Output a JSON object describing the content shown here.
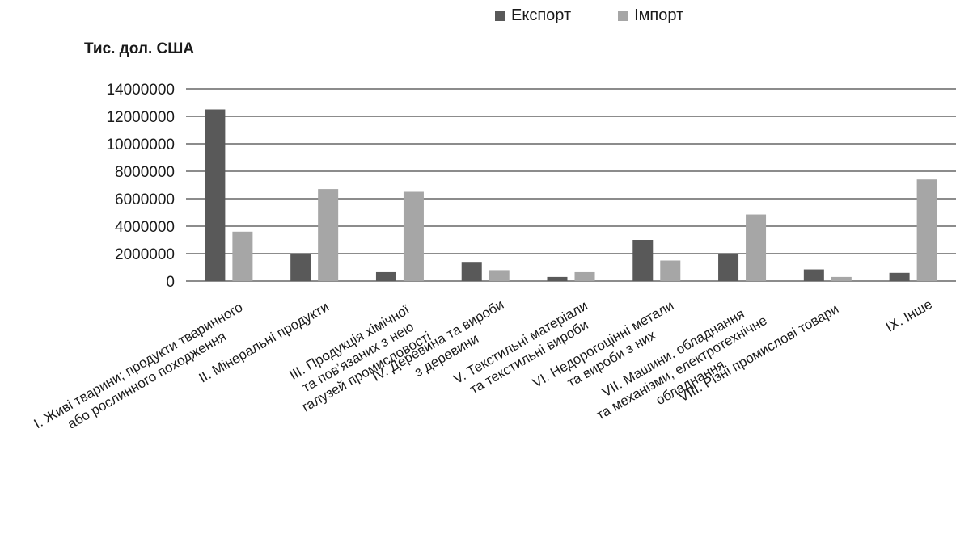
{
  "chart_data": {
    "type": "bar",
    "ylabel": "Тис. дол. США",
    "ylim": [
      0,
      14000000
    ],
    "yticks": [
      "14000000",
      "12000000",
      "10000000",
      "8000000",
      "6000000",
      "4000000",
      "2000000",
      "0"
    ],
    "grid": true,
    "legend_position": "top-right",
    "categories": [
      [
        "І. Живі тварини; продукти тваринного",
        "або рослинного походження"
      ],
      [
        "ІІ. Мінеральні продукти"
      ],
      [
        "ІІІ. Продукція хімічної",
        "та пов’язаних з нею",
        "галузей промисловості"
      ],
      [
        "IV. Деревина та вироби",
        "з деревини"
      ],
      [
        "V. Текстильні матеріали",
        "та текстильні вироби"
      ],
      [
        "VI. Недорогоцінні метали",
        "та вироби з них"
      ],
      [
        "VII. Машини, обладнання",
        "та механізми; електротехнічне",
        "обладнання"
      ],
      [
        "VIII. Різні промислові товари"
      ],
      [
        "IX. Інше"
      ]
    ],
    "series": [
      {
        "name": "Експорт",
        "color": "#595959",
        "values": [
          12500000,
          2000000,
          650000,
          1400000,
          300000,
          3000000,
          2000000,
          850000,
          600000
        ]
      },
      {
        "name": "Імпорт",
        "color": "#a6a6a6",
        "values": [
          3600000,
          6700000,
          6500000,
          800000,
          650000,
          1500000,
          4850000,
          300000,
          7400000
        ]
      }
    ]
  }
}
